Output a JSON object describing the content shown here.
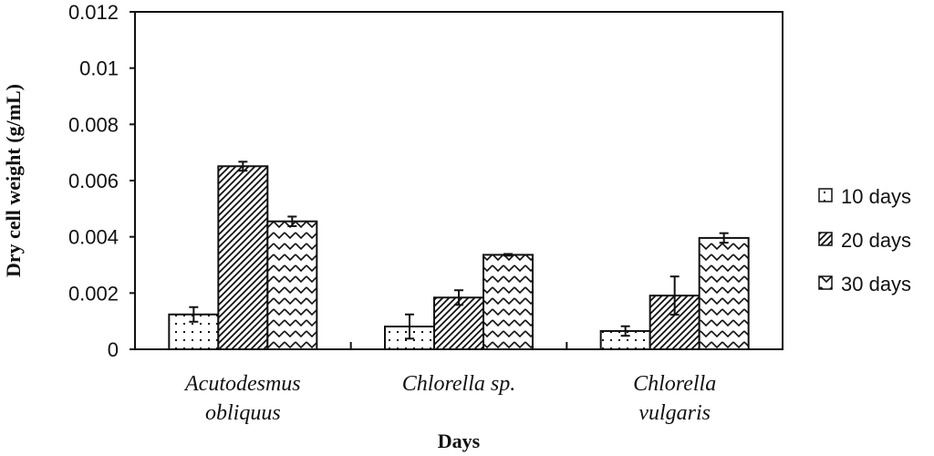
{
  "chart_data": {
    "type": "bar",
    "title": "",
    "xlabel": "Days",
    "ylabel": "Dry cell weight (g/mL)",
    "ylim": [
      0,
      0.012
    ],
    "yticks": [
      "0",
      "0.002",
      "0.004",
      "0.006",
      "0.008",
      "0.01",
      "0.012"
    ],
    "categories": [
      [
        "Acutodesmus",
        "obliquus"
      ],
      [
        "Chlorella sp."
      ],
      [
        "Chlorella",
        "vulgaris"
      ]
    ],
    "series": [
      {
        "name": "10 days",
        "pattern": "dots",
        "values": [
          0.00124,
          0.00081,
          0.00065
        ],
        "errors": [
          0.00026,
          0.00043,
          0.00017
        ]
      },
      {
        "name": "20 days",
        "pattern": "diagonal",
        "values": [
          0.00651,
          0.00184,
          0.00191
        ],
        "errors": [
          0.00016,
          0.00026,
          0.00068
        ]
      },
      {
        "name": "30 days",
        "pattern": "wave",
        "values": [
          0.00455,
          0.00336,
          0.00396
        ],
        "errors": [
          0.00017,
          3e-05,
          0.00017
        ]
      }
    ],
    "grid": false,
    "legend": "right",
    "colors": {
      "ink": "#111111",
      "background": "#ffffff"
    }
  }
}
